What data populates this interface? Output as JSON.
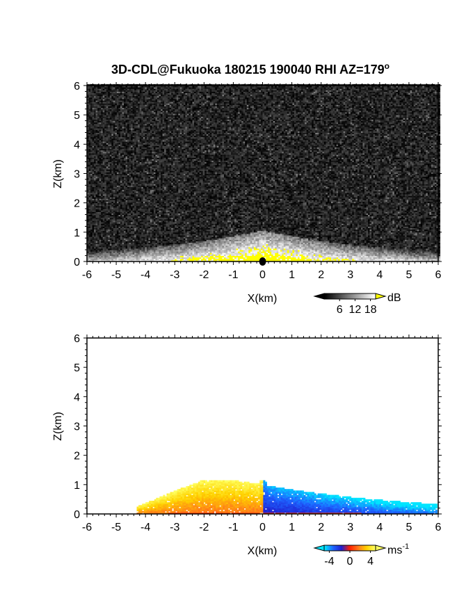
{
  "title": "3D-CDL@Fukuoka 180215 190040 RHI AZ=179",
  "title_superscript": "o",
  "chart_data": [
    {
      "type": "heatmap",
      "variable": "signal intensity",
      "xlabel": "X(km)",
      "ylabel": "Z(km)",
      "xlim": [
        -6,
        6
      ],
      "ylim": [
        0,
        6
      ],
      "x_ticks": [
        "-6",
        "-5",
        "-4",
        "-3",
        "-2",
        "-1",
        "0",
        "1",
        "2",
        "3",
        "4",
        "5",
        "6"
      ],
      "y_ticks": [
        "0",
        "1",
        "2",
        "3",
        "4",
        "5",
        "6"
      ],
      "background_color": "#000000",
      "saturation_color": "#ffff00",
      "colorbar": {
        "unit": "dB",
        "ticks": [
          "6",
          "12",
          "18"
        ],
        "range": [
          0,
          20
        ],
        "colors": [
          "#000000",
          "#ffffff"
        ],
        "over_color": "#ffff00"
      }
    },
    {
      "type": "heatmap",
      "variable": "radial velocity",
      "xlabel": "X(km)",
      "ylabel": "Z(km)",
      "xlim": [
        -6,
        6
      ],
      "ylim": [
        0,
        6
      ],
      "x_ticks": [
        "-6",
        "-5",
        "-4",
        "-3",
        "-2",
        "-1",
        "0",
        "1",
        "2",
        "3",
        "4",
        "5",
        "6"
      ],
      "y_ticks": [
        "0",
        "1",
        "2",
        "3",
        "4",
        "5",
        "6"
      ],
      "background_color": "#ffffff",
      "colorbar": {
        "unit": "ms",
        "unit_superscript": "-1",
        "ticks": [
          "-4",
          "0",
          "4"
        ],
        "range": [
          -5,
          5
        ],
        "colors": [
          "#00e5ff",
          "#1e64ff",
          "#2020d0",
          "#ff2000",
          "#ff7a1a",
          "#ffd200",
          "#ffff60"
        ]
      }
    }
  ]
}
